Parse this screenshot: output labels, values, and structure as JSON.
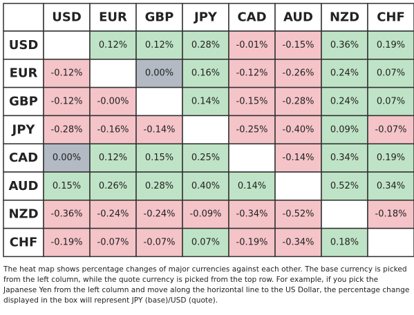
{
  "chart_data": {
    "type": "heatmap",
    "columns": [
      "USD",
      "EUR",
      "GBP",
      "JPY",
      "CAD",
      "AUD",
      "NZD",
      "CHF"
    ],
    "rows": [
      "USD",
      "EUR",
      "GBP",
      "JPY",
      "CAD",
      "AUD",
      "NZD",
      "CHF"
    ],
    "values": [
      [
        null,
        "0.12%",
        "0.12%",
        "0.28%",
        "-0.01%",
        "-0.15%",
        "0.36%",
        "0.19%"
      ],
      [
        "-0.12%",
        null,
        "0.00%",
        "0.16%",
        "-0.12%",
        "-0.26%",
        "0.24%",
        "0.07%"
      ],
      [
        "-0.12%",
        "-0.00%",
        null,
        "0.14%",
        "-0.15%",
        "-0.28%",
        "0.24%",
        "0.07%"
      ],
      [
        "-0.28%",
        "-0.16%",
        "-0.14%",
        null,
        "-0.25%",
        "-0.40%",
        "0.09%",
        "-0.07%"
      ],
      [
        "0.00%",
        "0.12%",
        "0.15%",
        "0.25%",
        null,
        "-0.14%",
        "0.34%",
        "0.19%"
      ],
      [
        "0.15%",
        "0.26%",
        "0.28%",
        "0.40%",
        "0.14%",
        null,
        "0.52%",
        "0.34%"
      ],
      [
        "-0.36%",
        "-0.24%",
        "-0.24%",
        "-0.09%",
        "-0.34%",
        "-0.52%",
        null,
        "-0.18%"
      ],
      [
        "-0.19%",
        "-0.07%",
        "-0.07%",
        "0.07%",
        "-0.19%",
        "-0.34%",
        "0.18%",
        null
      ]
    ],
    "colors": {
      "positive": "#bfe3c6",
      "negative": "#f4c4c9",
      "neutral": "#b3bac4",
      "empty": "#ffffff",
      "header": "#ffffff",
      "border": "#2f2f2f",
      "text": "#222222"
    }
  },
  "caption": "The heat map shows percentage changes of major currencies against each other. The base currency is picked from the left column, while the quote currency is picked from the top row. For example, if you pick the Japanese Yen from the left column and move along the horizontal line to the US Dollar, the percentage change displayed in the box will represent JPY (base)/USD (quote)."
}
